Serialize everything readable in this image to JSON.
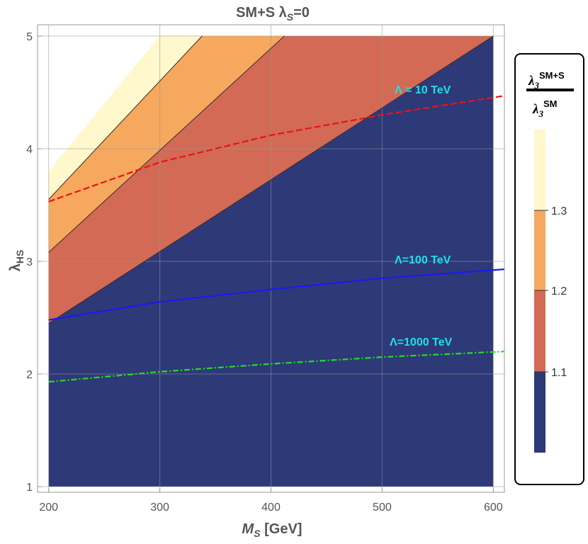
{
  "chart_data": {
    "type": "contour",
    "title": "SM+S λ",
    "title_sub": "S",
    "title_suffix": "=0",
    "xlabel": "M",
    "xlabel_sub": "S",
    "xlabel_unit": " [GeV]",
    "ylabel": "λ",
    "ylabel_sub": "HS",
    "xlim": [
      190,
      610
    ],
    "ylim": [
      0.95,
      5.1
    ],
    "x_ticks": [
      200,
      300,
      400,
      500,
      600
    ],
    "y_ticks": [
      1,
      2,
      3,
      4,
      5
    ],
    "grid": true,
    "regions": [
      {
        "range": "< 1.1",
        "color": "#2e3978"
      },
      {
        "range": "1.1 – 1.2",
        "color": "#d26a55"
      },
      {
        "range": "1.2 – 1.3",
        "color": "#f5a85e"
      },
      {
        "range": "> 1.3",
        "color": "#fef8cc"
      }
    ],
    "boundaries": [
      {
        "level": 1.1,
        "points": [
          [
            200,
            2.45
          ],
          [
            600,
            5.0
          ]
        ]
      },
      {
        "level": 1.2,
        "points": [
          [
            200,
            3.08
          ],
          [
            412,
            5.0
          ]
        ]
      },
      {
        "level": 1.3,
        "points": [
          [
            200,
            3.55
          ],
          [
            338,
            5.0
          ]
        ]
      },
      {
        "level": "domain-edge",
        "points": [
          [
            200,
            3.8
          ],
          [
            300,
            5.0
          ]
        ]
      }
    ],
    "series": [
      {
        "name": "Λ = 10 TeV",
        "style": "dashed",
        "color": "#ee1111",
        "x": [
          200,
          300,
          400,
          500,
          610
        ],
        "y": [
          3.53,
          3.88,
          4.12,
          4.3,
          4.47
        ]
      },
      {
        "name": "Λ=100 TeV",
        "style": "solid",
        "color": "#1a1aee",
        "x": [
          200,
          300,
          400,
          500,
          610
        ],
        "y": [
          2.48,
          2.64,
          2.75,
          2.85,
          2.93
        ]
      },
      {
        "name": "Λ=1000 TeV",
        "style": "dashdot",
        "color": "#22dd22",
        "x": [
          200,
          300,
          400,
          500,
          610
        ],
        "y": [
          1.93,
          2.02,
          2.09,
          2.15,
          2.2
        ]
      }
    ],
    "legend": {
      "title_numerator": "λ",
      "title_numerator_sup": "SM+S",
      "title_denominator": "λ",
      "title_denominator_sup": "SM",
      "sub": "3",
      "ticks": [
        "1.1",
        "1.2",
        "1.3"
      ],
      "placement": "right"
    }
  }
}
